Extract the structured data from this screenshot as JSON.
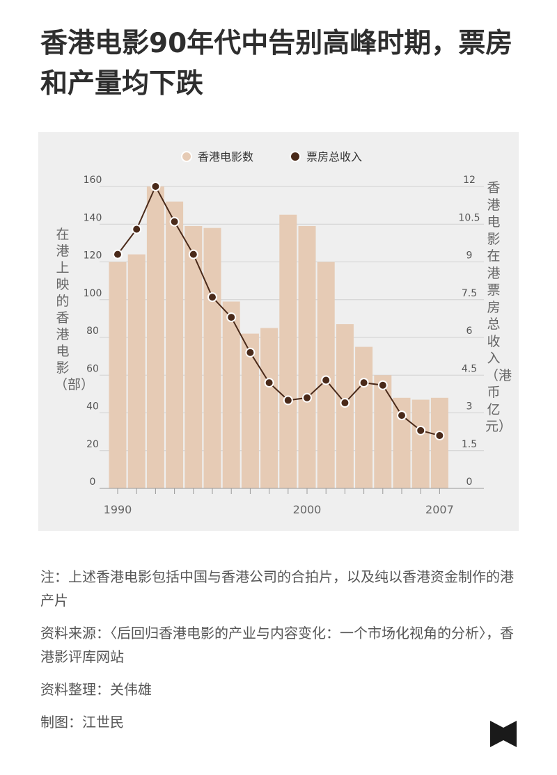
{
  "title": "香港电影90年代中告别高峰时期，票房和产量均下跌",
  "chart_data": {
    "type": "bar+line",
    "legend_position": "top-center",
    "grid": true,
    "x": [
      1990,
      1991,
      1992,
      1993,
      1994,
      1995,
      1996,
      1997,
      1998,
      1999,
      2000,
      2001,
      2002,
      2003,
      2004,
      2005,
      2006,
      2007
    ],
    "x_tick_labels": [
      "1990",
      "2000",
      "2007"
    ],
    "series": [
      {
        "name": "香港电影数",
        "type": "bar",
        "axis": "left",
        "color": "#e6cbb5",
        "values": [
          120,
          124,
          160,
          152,
          139,
          138,
          99,
          82,
          85,
          145,
          139,
          120,
          87,
          75,
          60,
          48,
          47,
          48
        ]
      },
      {
        "name": "票房总收入",
        "type": "line",
        "axis": "right",
        "color": "#4a2a1a",
        "values": [
          9.3,
          10.3,
          12.0,
          10.6,
          9.3,
          7.6,
          6.8,
          5.4,
          4.2,
          3.5,
          3.6,
          4.3,
          3.4,
          4.2,
          4.1,
          2.9,
          2.3,
          2.1
        ]
      }
    ],
    "y_left": {
      "label": "在港上映的香港电影（部）",
      "range": [
        0,
        160
      ],
      "ticks": [
        "0",
        "20",
        "40",
        "60",
        "80",
        "100",
        "120",
        "140",
        "160"
      ]
    },
    "y_right": {
      "label": "香港电影在港票房总收入（港币亿元）",
      "range": [
        0,
        12
      ],
      "ticks": [
        "0",
        "1.5",
        "3",
        "4.5",
        "6",
        "7.5",
        "9",
        "10.5",
        "12"
      ]
    }
  },
  "notes": [
    "注：上述香港电影包括中国与香港公司的合拍片，以及纯以香港资金制作的港产片",
    "资料来源：〈后回归香港电影的产业与内容变化：一个市场化视角的分析〉，香港影评库网站",
    "资料整理：关伟雄",
    "制图：江世民"
  ],
  "colors": {
    "panel_bg": "#efefef",
    "bar": "#e6cbb5",
    "line": "#4a2a1a",
    "grid": "#d0d0d0",
    "logo": "#1a1a1a"
  }
}
